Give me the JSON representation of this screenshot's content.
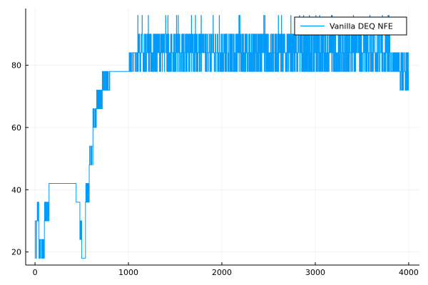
{
  "chart_data": {
    "type": "line",
    "legend": {
      "position": "top-right"
    },
    "grid": true,
    "xlim": [
      -100,
      4115
    ],
    "ylim": [
      15.8,
      98.2
    ],
    "x_ticks": [
      0,
      1000,
      2000,
      3000,
      4000
    ],
    "y_ticks": [
      20,
      40,
      60,
      80
    ],
    "x_tick_labels": [
      "0",
      "1000",
      "2000",
      "3000",
      "4000"
    ],
    "y_tick_labels": [
      "20",
      "40",
      "60",
      "80"
    ],
    "series": [
      {
        "name": "Vanilla DEQ NFE",
        "color": "#009af9",
        "segments": [
          {
            "x0": 0,
            "x1": 20,
            "values": [
              18,
              30
            ]
          },
          {
            "x0": 20,
            "x1": 40,
            "values": [
              30,
              36
            ]
          },
          {
            "x0": 40,
            "x1": 100,
            "values": [
              18,
              24
            ]
          },
          {
            "x0": 100,
            "x1": 150,
            "values": [
              30,
              36
            ]
          },
          {
            "x0": 150,
            "x1": 440,
            "values": [
              42
            ]
          },
          {
            "x0": 440,
            "x1": 480,
            "values": [
              36
            ]
          },
          {
            "x0": 480,
            "x1": 500,
            "values": [
              24,
              30
            ]
          },
          {
            "x0": 500,
            "x1": 540,
            "values": [
              18
            ]
          },
          {
            "x0": 540,
            "x1": 580,
            "values": [
              36,
              42
            ]
          },
          {
            "x0": 580,
            "x1": 620,
            "values": [
              48,
              54
            ]
          },
          {
            "x0": 620,
            "x1": 660,
            "values": [
              60,
              66
            ]
          },
          {
            "x0": 660,
            "x1": 720,
            "values": [
              66,
              72
            ]
          },
          {
            "x0": 720,
            "x1": 800,
            "values": [
              72,
              78
            ]
          },
          {
            "x0": 800,
            "x1": 1000,
            "values": [
              78
            ]
          },
          {
            "x0": 1000,
            "x1": 1100,
            "values": [
              78,
              84
            ]
          },
          {
            "x0": 1100,
            "x1": 2200,
            "values": [
              78,
              84,
              90,
              96
            ]
          },
          {
            "x0": 2200,
            "x1": 3800,
            "values": [
              78,
              84,
              90,
              96
            ]
          },
          {
            "x0": 3800,
            "x1": 3900,
            "values": [
              78,
              84
            ]
          },
          {
            "x0": 3900,
            "x1": 4000,
            "values": [
              72,
              78,
              84
            ]
          }
        ]
      }
    ]
  }
}
